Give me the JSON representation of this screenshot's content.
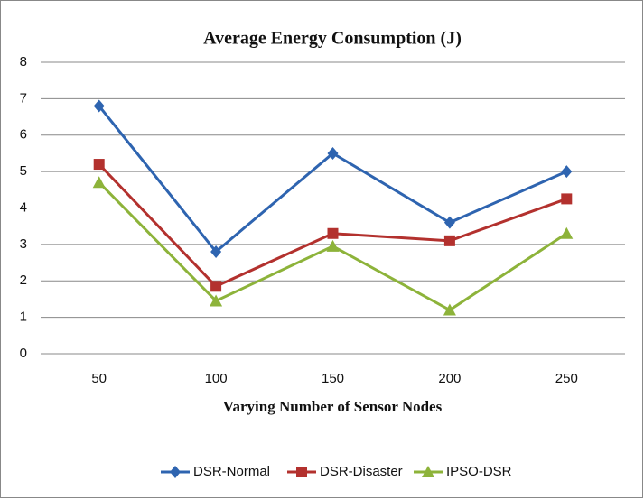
{
  "chart_data": {
    "type": "line",
    "title": "Average Energy Consumption (J)",
    "x_label": "Varying Number of Sensor Nodes",
    "categories": [
      "50",
      "100",
      "150",
      "200",
      "250"
    ],
    "series": [
      {
        "name": "DSR-Normal",
        "color": "#2e64b0",
        "marker": "diamond",
        "values": [
          6.8,
          2.8,
          5.5,
          3.6,
          5.0
        ]
      },
      {
        "name": "DSR-Disaster",
        "color": "#b3312e",
        "marker": "square",
        "values": [
          5.2,
          1.85,
          3.3,
          3.1,
          4.25
        ]
      },
      {
        "name": "IPSO-DSR",
        "color": "#8db33a",
        "marker": "triangle",
        "values": [
          4.7,
          1.45,
          2.95,
          1.2,
          3.3
        ]
      }
    ],
    "ylim": [
      0,
      8
    ],
    "yticks": [
      0,
      1,
      2,
      3,
      4,
      5,
      6,
      7,
      8
    ],
    "grid": true,
    "legend": "bottom"
  }
}
